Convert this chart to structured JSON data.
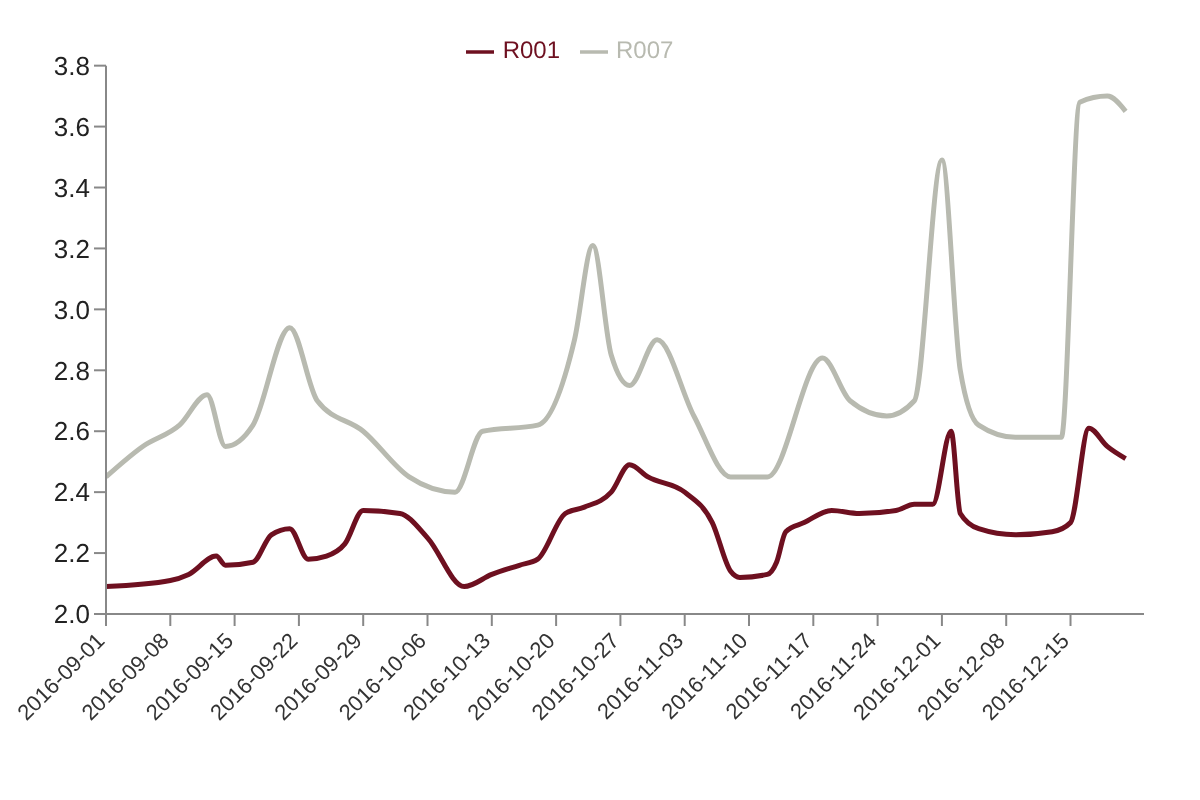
{
  "chart_data": {
    "type": "line",
    "x": [
      "2016-09-01",
      "2016-09-08",
      "2016-09-10",
      "2016-09-13",
      "2016-09-14",
      "2016-09-17",
      "2016-09-19",
      "2016-09-21",
      "2016-09-23",
      "2016-09-25",
      "2016-09-27",
      "2016-09-29",
      "2016-10-03",
      "2016-10-06",
      "2016-10-10",
      "2016-10-13",
      "2016-10-16",
      "2016-10-18",
      "2016-10-21",
      "2016-10-23",
      "2016-10-26",
      "2016-10-28",
      "2016-10-30",
      "2016-11-03",
      "2016-11-06",
      "2016-11-08",
      "2016-11-09",
      "2016-11-12",
      "2016-11-13",
      "2016-11-14",
      "2016-11-16",
      "2016-11-19",
      "2016-11-22",
      "2016-11-26",
      "2016-11-28",
      "2016-11-30",
      "2016-12-02",
      "2016-12-03",
      "2016-12-05",
      "2016-12-09",
      "2016-12-13",
      "2016-12-15",
      "2016-12-17",
      "2016-12-19",
      "2016-12-21"
    ],
    "series": [
      {
        "name": "R001",
        "color": "#6e1020",
        "values": [
          2.09,
          2.11,
          2.13,
          2.19,
          2.16,
          2.17,
          2.26,
          2.28,
          2.18,
          2.19,
          2.23,
          2.34,
          2.33,
          2.25,
          2.09,
          2.13,
          2.16,
          2.18,
          2.33,
          2.35,
          2.4,
          2.49,
          2.45,
          2.4,
          2.3,
          2.14,
          2.12,
          2.13,
          2.17,
          2.27,
          2.3,
          2.34,
          2.33,
          2.34,
          2.36,
          2.36,
          2.6,
          2.33,
          2.28,
          2.26,
          2.27,
          2.3,
          2.61,
          2.55,
          2.51
        ]
      },
      {
        "name": "R007",
        "color": "#b8bab0",
        "x": [
          "2016-09-01",
          "2016-09-05",
          "2016-09-09",
          "2016-09-12",
          "2016-09-14",
          "2016-09-17",
          "2016-09-21",
          "2016-09-24",
          "2016-09-29",
          "2016-10-04",
          "2016-10-09",
          "2016-10-12",
          "2016-10-18",
          "2016-10-22",
          "2016-10-24",
          "2016-10-26",
          "2016-10-28",
          "2016-10-31",
          "2016-11-04",
          "2016-11-08",
          "2016-11-12",
          "2016-11-18",
          "2016-11-21",
          "2016-11-25",
          "2016-11-28",
          "2016-12-01",
          "2016-12-03",
          "2016-12-05",
          "2016-12-09",
          "2016-12-14",
          "2016-12-16",
          "2016-12-19",
          "2016-12-21"
        ],
        "values": [
          2.45,
          2.55,
          2.62,
          2.72,
          2.55,
          2.62,
          2.94,
          2.7,
          2.6,
          2.45,
          2.4,
          2.6,
          2.62,
          2.9,
          3.21,
          2.85,
          2.75,
          2.9,
          2.65,
          2.45,
          2.45,
          2.84,
          2.7,
          2.65,
          2.7,
          3.49,
          2.8,
          2.62,
          2.58,
          2.58,
          3.68,
          3.7,
          3.65
        ]
      }
    ],
    "xlim": [
      "2016-09-01",
      "2016-12-23"
    ],
    "xticks": [
      "2016-09-01",
      "2016-09-08",
      "2016-09-15",
      "2016-09-22",
      "2016-09-29",
      "2016-10-06",
      "2016-10-13",
      "2016-10-20",
      "2016-10-27",
      "2016-11-03",
      "2016-11-10",
      "2016-11-17",
      "2016-11-24",
      "2016-12-01",
      "2016-12-08",
      "2016-12-15"
    ],
    "ylim": [
      2.0,
      3.8
    ],
    "yticks": [
      {
        "value": 2.0,
        "label": "2.0"
      },
      {
        "value": 2.2,
        "label": "2.2"
      },
      {
        "value": 2.4,
        "label": "2.4"
      },
      {
        "value": 2.6,
        "label": "2.6"
      },
      {
        "value": 2.8,
        "label": "2.8"
      },
      {
        "value": 3.0,
        "label": "3.0"
      },
      {
        "value": 3.2,
        "label": "3.2"
      },
      {
        "value": 3.4,
        "label": "3.4"
      },
      {
        "value": 3.6,
        "label": "3.6"
      },
      {
        "value": 3.8,
        "label": "3.8"
      }
    ],
    "grid": false,
    "legend": "top",
    "marker": "none",
    "line_style": "solid"
  }
}
